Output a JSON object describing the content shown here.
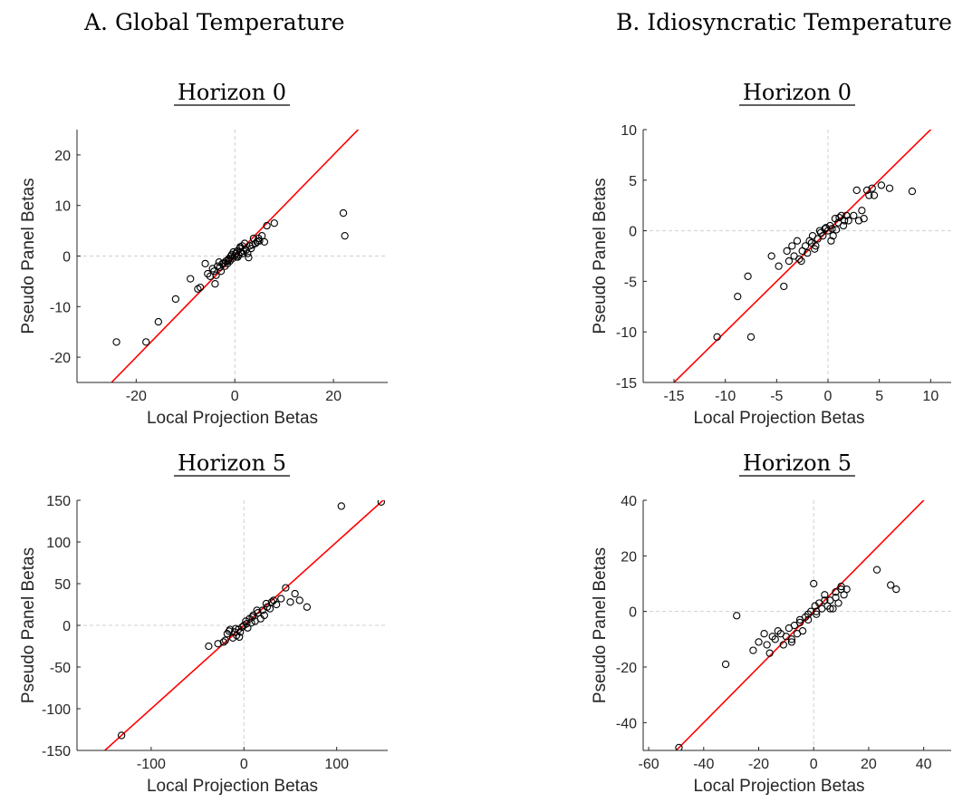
{
  "columns": [
    "A. Global Temperature",
    "B. Idiosyncratic Temperature"
  ],
  "chart_data": [
    {
      "type": "scatter",
      "title": "Horizon 0",
      "xlabel": "Local Projection Betas",
      "ylabel": "Pseudo Panel Betas",
      "xlim": [
        -32,
        31
      ],
      "ylim": [
        -25,
        25
      ],
      "xticks": [
        -20,
        0,
        20
      ],
      "yticks": [
        -20,
        -10,
        0,
        10,
        20
      ],
      "grid": "dashed zero lines",
      "series": [
        {
          "marker": "circle",
          "x": [
            -24,
            -18,
            -15.5,
            -12,
            -9,
            -7.5,
            -7,
            -6,
            -5.5,
            -5,
            -4.5,
            -4,
            -3.8,
            -3.5,
            -3,
            -2.8,
            -2.5,
            -2,
            -1.8,
            -1.5,
            -1.2,
            -1,
            -0.8,
            -0.5,
            -0.3,
            0,
            0.2,
            0.5,
            0.8,
            1,
            1.2,
            1.5,
            1.8,
            2,
            2.3,
            2.6,
            3,
            3.3,
            3.8,
            4.2,
            4.8,
            5,
            5.5,
            6,
            6.5,
            8,
            22,
            22.3,
            -3.2,
            -4.2,
            0.6,
            1.6,
            2.8,
            3.6,
            -1.3,
            -0.6,
            0.3,
            1.1,
            -2.2,
            4.5
          ],
          "y": [
            -17,
            -17,
            -13,
            -8.5,
            -4.5,
            -6.5,
            -6.2,
            -1.5,
            -3.5,
            -4,
            -2.5,
            -5.5,
            -3.8,
            -2,
            -2.2,
            -3,
            -1.5,
            -2,
            -1,
            -1.5,
            -0.5,
            -1,
            0,
            -0.5,
            0.8,
            0,
            0.5,
            1,
            0.2,
            1.5,
            0.8,
            2,
            1,
            2.5,
            1.2,
            0.5,
            2,
            1.5,
            3.5,
            2.5,
            3.5,
            3,
            4,
            2.8,
            6,
            6.5,
            8.5,
            4,
            -1.2,
            -3,
            -0.2,
            0.5,
            -0.3,
            2.2,
            -0.8,
            0.3,
            -0.2,
            1.8,
            -1.4,
            2.8
          ]
        }
      ],
      "reference_line": {
        "slope": 1,
        "intercept": 0,
        "color": "#ff0000"
      }
    },
    {
      "type": "scatter",
      "title": "Horizon 0",
      "xlabel": "Local Projection Betas",
      "ylabel": "Pseudo Panel Betas",
      "xlim": [
        -18,
        12
      ],
      "ylim": [
        -15,
        10
      ],
      "xticks": [
        -15,
        -10,
        -5,
        0,
        5,
        10
      ],
      "yticks": [
        -15,
        -10,
        -5,
        0,
        5,
        10
      ],
      "grid": "dashed zero lines",
      "series": [
        {
          "marker": "circle",
          "x": [
            -10.8,
            -8.8,
            -7.8,
            -7.5,
            -5.5,
            -4.8,
            -4.3,
            -4,
            -3.8,
            -3.5,
            -3.3,
            -3,
            -2.8,
            -2.5,
            -2.2,
            -2,
            -1.8,
            -1.5,
            -1.2,
            -1,
            -0.8,
            -0.5,
            -0.3,
            0,
            0.2,
            0.5,
            0.7,
            1,
            1.3,
            1.5,
            1.8,
            2,
            2.5,
            2.8,
            3,
            3.3,
            3.5,
            3.8,
            4,
            4.3,
            4.5,
            5.2,
            6,
            8.2,
            0.3,
            -0.2,
            0.8,
            1.1,
            -1.6,
            -2.6,
            0.4,
            1.6,
            -0.7,
            -1.3
          ],
          "y": [
            -10.5,
            -6.5,
            -4.5,
            -10.5,
            -2.5,
            -3.5,
            -5.5,
            -2,
            -3,
            -1.5,
            -2.5,
            -1,
            -2.8,
            -2,
            -1.5,
            -2.2,
            -1,
            -0.5,
            -1.5,
            -0.8,
            0,
            -0.5,
            0.2,
            0,
            0.5,
            -0.5,
            1.2,
            0.8,
            1.5,
            0.5,
            1.5,
            1,
            1.5,
            4,
            1,
            2,
            1.2,
            4,
            3.5,
            4.2,
            3.5,
            4.5,
            4.2,
            3.9,
            -1,
            0.3,
            0.1,
            1.3,
            -1.2,
            -3,
            0.2,
            1,
            -0.2,
            -1.8
          ]
        }
      ],
      "reference_line": {
        "slope": 1,
        "intercept": 0,
        "color": "#ff0000"
      }
    },
    {
      "type": "scatter",
      "title": "Horizon 5",
      "xlabel": "Local Projection Betas",
      "ylabel": "Pseudo Panel Betas",
      "xlim": [
        -180,
        155
      ],
      "ylim": [
        -150,
        150
      ],
      "xticks": [
        -100,
        0,
        100
      ],
      "yticks": [
        -150,
        -100,
        -50,
        0,
        50,
        100,
        150
      ],
      "grid": "dashed zero lines",
      "series": [
        {
          "marker": "circle",
          "x": [
            -132,
            -38,
            -28,
            -22,
            -20,
            -18,
            -15,
            -12,
            -10,
            -8,
            -6,
            -4,
            -2,
            0,
            2,
            4,
            6,
            8,
            10,
            12,
            15,
            18,
            20,
            22,
            25,
            28,
            30,
            35,
            40,
            45,
            50,
            55,
            60,
            68,
            105,
            148,
            -16,
            -5,
            3,
            9,
            14,
            -9,
            24,
            32
          ],
          "y": [
            -132,
            -25,
            -22,
            -20,
            -18,
            -10,
            -5,
            -15,
            -8,
            -12,
            -5,
            -8,
            -2,
            0,
            5,
            -3,
            8,
            3,
            12,
            5,
            15,
            8,
            18,
            12,
            22,
            20,
            28,
            25,
            32,
            45,
            28,
            38,
            30,
            22,
            143,
            148,
            -7,
            -14,
            2,
            10,
            18,
            -4,
            26,
            30
          ]
        }
      ],
      "reference_line": {
        "slope": 1,
        "intercept": 0,
        "color": "#ff0000"
      }
    },
    {
      "type": "scatter",
      "title": "Horizon 5",
      "xlabel": "Local Projection Betas",
      "ylabel": "Pseudo Panel Betas",
      "xlim": [
        -62,
        50
      ],
      "ylim": [
        -50,
        40
      ],
      "xticks": [
        -60,
        -40,
        -20,
        0,
        20,
        40
      ],
      "yticks": [
        -40,
        -20,
        0,
        20,
        40
      ],
      "grid": "dashed zero lines",
      "series": [
        {
          "marker": "circle",
          "x": [
            -49,
            -32,
            -28,
            -22,
            -20,
            -18,
            -17,
            -16,
            -15,
            -14,
            -12,
            -11,
            -10,
            -9,
            -8,
            -7,
            -6,
            -5,
            -4,
            -3,
            -2,
            -1,
            0,
            0.5,
            1,
            2,
            3,
            4,
            5,
            6,
            7,
            8,
            9,
            10,
            11,
            12,
            -5,
            23,
            28,
            30,
            -13,
            -2,
            4,
            8,
            -8,
            1,
            6,
            10
          ],
          "y": [
            -49,
            -19,
            -1.5,
            -14,
            -11,
            -8,
            -12,
            -15,
            -9,
            -10,
            -8,
            -12,
            -9,
            -6,
            -11,
            -5,
            -8,
            -4,
            -7,
            -2,
            -3,
            0,
            10,
            2,
            -1,
            3,
            1,
            6,
            2,
            4,
            1,
            7,
            3,
            9,
            6,
            8,
            -3,
            15,
            9.5,
            8,
            -7,
            -1,
            4,
            5,
            -10,
            0,
            1,
            8
          ]
        }
      ],
      "reference_line": {
        "slope": 1,
        "intercept": 0,
        "color": "#ff0000"
      }
    }
  ]
}
